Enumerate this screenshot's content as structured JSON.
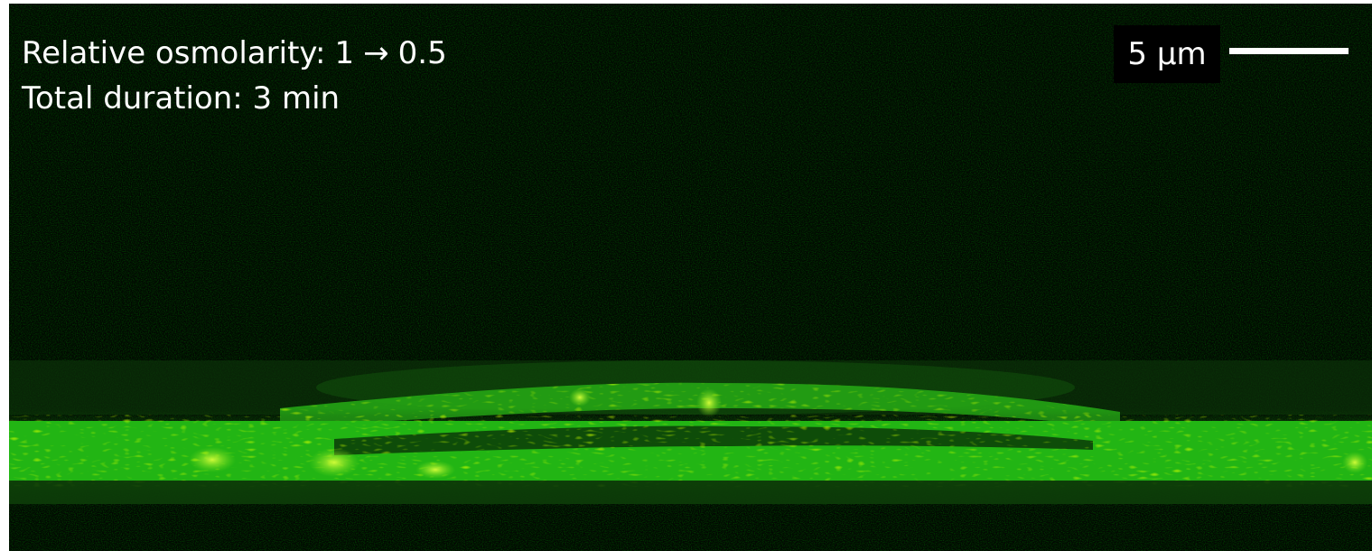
{
  "image": {
    "channel_color": "#33ff22",
    "background_color": "#020702"
  },
  "annotation": {
    "osmolarity_prefix": "Relative osmolarity:",
    "osmolarity_from": "1",
    "arrow": "→",
    "osmolarity_to": "0.5",
    "duration": "Total duration: 3 min"
  },
  "scale_bar": {
    "label": "5 µm",
    "color": "#ffffff"
  }
}
